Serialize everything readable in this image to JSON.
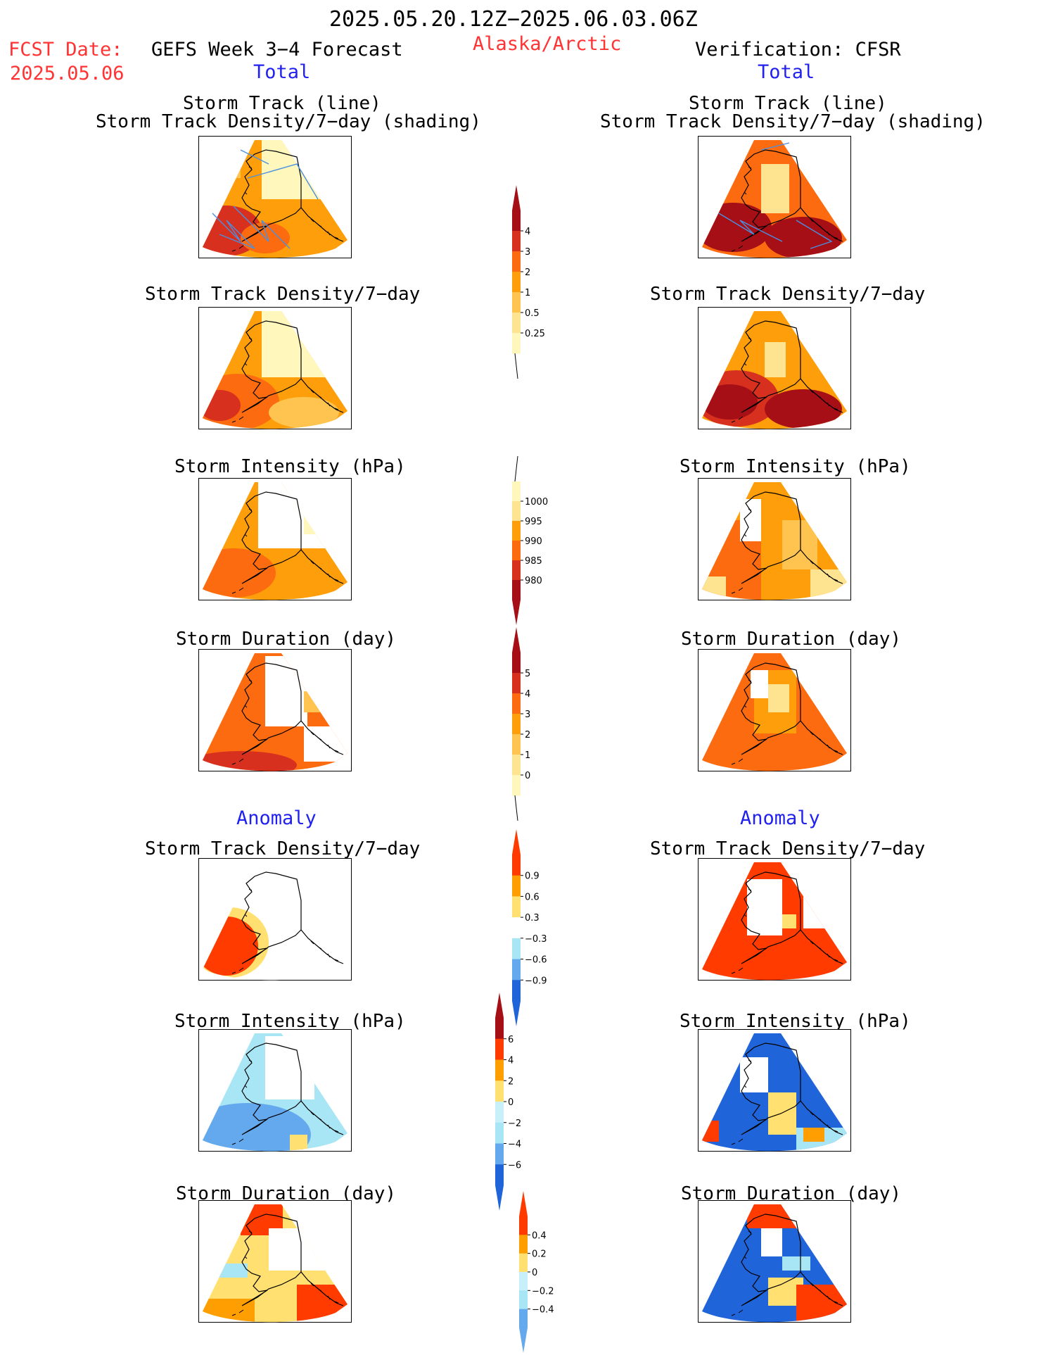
{
  "header": {
    "date_range": "2025.05.20.12Z−2025.06.03.06Z",
    "fcst_date_label": "FCST Date:",
    "fcst_date_value": "2025.05.06",
    "forecast_title": "GEFS Week 3−4 Forecast",
    "region": "Alaska/Arctic",
    "verification_title": "Verification: CFSR"
  },
  "columns": [
    {
      "section_total": "Total",
      "section_anomaly": "Anomaly"
    },
    {
      "section_total": "Total",
      "section_anomaly": "Anomaly"
    }
  ],
  "panel_titles": {
    "track_line": "Storm Track (line)",
    "track_shading": "Storm Track Density/7−day (shading)",
    "density": "Storm Track Density/7−day",
    "intensity": "Storm Intensity (hPa)",
    "duration": "Storm Duration (day)"
  },
  "colorbars": [
    {
      "id": "density_total",
      "labels": [
        "4",
        "3",
        "2",
        "1",
        "0.5",
        "0.25"
      ],
      "colors": [
        "#a50f15",
        "#d7301f",
        "#fc6b10",
        "#fe9e0a",
        "#fec44f",
        "#fee391",
        "#fff7bc"
      ],
      "arrow": "top"
    },
    {
      "id": "intensity_total",
      "labels": [
        "1000",
        "995",
        "990",
        "985",
        "980"
      ],
      "colors": [
        "#fff7bc",
        "#fee391",
        "#fe9e0a",
        "#fc6b10",
        "#d7301f",
        "#a50f15"
      ],
      "arrow": "bottom"
    },
    {
      "id": "duration_total",
      "labels": [
        "5",
        "4",
        "3",
        "2",
        "1",
        "0"
      ],
      "colors": [
        "#a50f15",
        "#d7301f",
        "#fc6b10",
        "#fe9e0a",
        "#fec44f",
        "#fee391",
        "#fff7bc"
      ],
      "arrow": "top"
    },
    {
      "id": "density_anom",
      "labels": [
        "0.9",
        "0.6",
        "0.3",
        "−0.3",
        "−0.6",
        "−0.9"
      ],
      "colors": [
        "#ff3b00",
        "#ff9e00",
        "#ffe070",
        "#ffffff",
        "#a8e6f5",
        "#64a8ee",
        "#1f64d8"
      ],
      "arrow": "both"
    },
    {
      "id": "intensity_anom",
      "labels": [
        "6",
        "4",
        "2",
        "0",
        "−2",
        "−4",
        "−6"
      ],
      "colors": [
        "#a50f15",
        "#ff3b00",
        "#ff9e00",
        "#ffe070",
        "#c8f0fa",
        "#a8e6f5",
        "#64a8ee",
        "#1f64d8"
      ],
      "arrow": "both"
    },
    {
      "id": "duration_anom",
      "labels": [
        "0.4",
        "0.2",
        "0",
        "−0.2",
        "−0.4"
      ],
      "colors": [
        "#ff3b00",
        "#ff9e00",
        "#ffe070",
        "#c8f0fa",
        "#a8e6f5",
        "#64a8ee"
      ],
      "arrow": "both"
    }
  ],
  "colors": {
    "header_red": "#ff3333",
    "section_blue": "#2222ee",
    "track_line": "#4a90e2",
    "coastline": "#000000"
  }
}
